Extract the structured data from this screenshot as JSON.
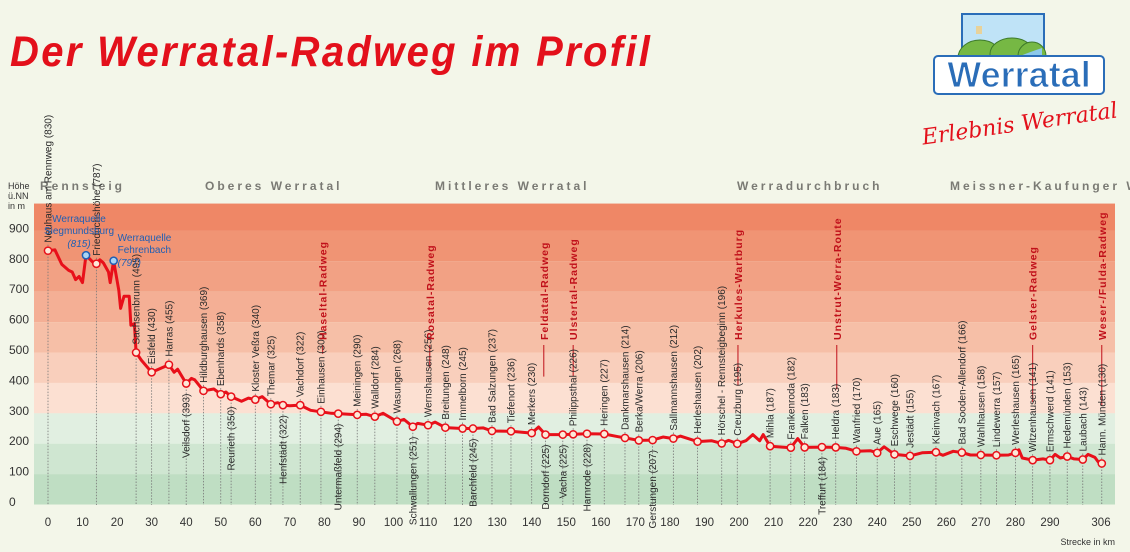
{
  "header": {
    "title": "Der Werratal-Radweg im Profil"
  },
  "logo": {
    "wordmark": "Werratal",
    "slogan": "Erlebnis Werratal"
  },
  "colors": {
    "profile": "#e8101a",
    "trail": "#c0101a",
    "source": "#1f5fb5",
    "title": "#e3101b"
  },
  "chart_data": {
    "type": "line",
    "title": "Der Werratal-Radweg im Profil",
    "xlabel": "Strecke in km",
    "ylabel": [
      "Höhe",
      "ü.NN",
      "in m"
    ],
    "xlim": [
      0,
      306
    ],
    "ylim": [
      0,
      900
    ],
    "xticks": [
      0,
      10,
      20,
      30,
      40,
      50,
      60,
      70,
      80,
      90,
      100,
      110,
      120,
      130,
      140,
      150,
      160,
      170,
      180,
      190,
      200,
      210,
      220,
      230,
      240,
      250,
      260,
      270,
      280,
      290,
      306
    ],
    "yticks": [
      0,
      100,
      200,
      300,
      400,
      500,
      600,
      700,
      800,
      900
    ],
    "regions": [
      "Rennsteig",
      "Oberes Werratal",
      "Mittleres Werratal",
      "Werradurchbruch",
      "Meissner-Kaufunger Wald"
    ],
    "sources": [
      {
        "title": "Werraquelle",
        "name": "Siegmundsburg",
        "km": 11,
        "elev": 815
      },
      {
        "title": "Werraquelle",
        "name": "Fehrenbach",
        "km": 19,
        "elev": 797
      }
    ],
    "stations": [
      {
        "name": "Neuhaus am Rennweg",
        "km": 0,
        "elev": 830,
        "pos": "above"
      },
      {
        "name": "Friedrichshöhe",
        "km": 14,
        "elev": 787,
        "pos": "above"
      },
      {
        "name": "Sachsenbrunn",
        "km": 25.5,
        "elev": 495,
        "pos": "above"
      },
      {
        "name": "Eisfeld",
        "km": 30,
        "elev": 430,
        "pos": "above"
      },
      {
        "name": "Harras",
        "km": 35,
        "elev": 455,
        "pos": "above"
      },
      {
        "name": "Veilsdorf",
        "km": 40,
        "elev": 393,
        "pos": "below"
      },
      {
        "name": "Hildburghausen",
        "km": 45,
        "elev": 369,
        "pos": "above"
      },
      {
        "name": "Ebenhards",
        "km": 50,
        "elev": 358,
        "pos": "above"
      },
      {
        "name": "Reurieth",
        "km": 53,
        "elev": 350,
        "pos": "below"
      },
      {
        "name": "Kloster Veßra",
        "km": 60,
        "elev": 340,
        "pos": "above"
      },
      {
        "name": "Themar",
        "km": 64.5,
        "elev": 325,
        "pos": "above"
      },
      {
        "name": "Henfstädt",
        "km": 68,
        "elev": 322,
        "pos": "below"
      },
      {
        "name": "Vachdorf",
        "km": 73,
        "elev": 322,
        "pos": "above"
      },
      {
        "name": "Einhausen",
        "km": 79,
        "elev": 300,
        "pos": "above"
      },
      {
        "name": "Untermaßfeld",
        "km": 84,
        "elev": 294,
        "pos": "below"
      },
      {
        "name": "Meiningen",
        "km": 89.5,
        "elev": 290,
        "pos": "above"
      },
      {
        "name": "Walldorf",
        "km": 94.6,
        "elev": 284,
        "pos": "above"
      },
      {
        "name": "Wasungen",
        "km": 101,
        "elev": 268,
        "pos": "above"
      },
      {
        "name": "Schwallungen",
        "km": 105.6,
        "elev": 251,
        "pos": "below"
      },
      {
        "name": "Wernshausen",
        "km": 110,
        "elev": 256,
        "pos": "above"
      },
      {
        "name": "Breitungen",
        "km": 115,
        "elev": 248,
        "pos": "above"
      },
      {
        "name": "Immelborn",
        "km": 120,
        "elev": 245,
        "pos": "above"
      },
      {
        "name": "Barchfeld",
        "km": 123,
        "elev": 245,
        "pos": "below"
      },
      {
        "name": "Bad Salzungen",
        "km": 128.5,
        "elev": 237,
        "pos": "above"
      },
      {
        "name": "Tiefenort",
        "km": 134,
        "elev": 236,
        "pos": "above"
      },
      {
        "name": "Merkers",
        "km": 140,
        "elev": 230,
        "pos": "above"
      },
      {
        "name": "Dorndorf",
        "km": 144,
        "elev": 225,
        "pos": "below"
      },
      {
        "name": "Vacha",
        "km": 149,
        "elev": 225,
        "pos": "below"
      },
      {
        "name": "Philippsthal",
        "km": 152,
        "elev": 226,
        "pos": "above"
      },
      {
        "name": "Harnrode",
        "km": 156,
        "elev": 228,
        "pos": "below"
      },
      {
        "name": "Heringen",
        "km": 161,
        "elev": 227,
        "pos": "above"
      },
      {
        "name": "Dankmarshausen",
        "km": 167,
        "elev": 214,
        "pos": "above"
      },
      {
        "name": "Berka/Werra",
        "km": 171,
        "elev": 206,
        "pos": "above"
      },
      {
        "name": "Gerstungen",
        "km": 175,
        "elev": 207,
        "pos": "below"
      },
      {
        "name": "Sallmannshausen",
        "km": 181,
        "elev": 212,
        "pos": "above"
      },
      {
        "name": "Herleshausen",
        "km": 188,
        "elev": 202,
        "pos": "above"
      },
      {
        "name": "Hörschel - Rennsteigbeginn",
        "km": 195,
        "elev": 196,
        "pos": "above"
      },
      {
        "name": "Creuzburg",
        "km": 199.5,
        "elev": 195,
        "pos": "above"
      },
      {
        "name": "Mihla",
        "km": 209,
        "elev": 187,
        "pos": "above"
      },
      {
        "name": "Frankenroda",
        "km": 215,
        "elev": 182,
        "pos": "above"
      },
      {
        "name": "Falken",
        "km": 219,
        "elev": 183,
        "pos": "above"
      },
      {
        "name": "Treffurt",
        "km": 224,
        "elev": 184,
        "pos": "below"
      },
      {
        "name": "Heldra",
        "km": 228,
        "elev": 183,
        "pos": "above"
      },
      {
        "name": "Wanfried",
        "km": 234,
        "elev": 170,
        "pos": "above"
      },
      {
        "name": "Aue",
        "km": 240,
        "elev": 165,
        "pos": "above"
      },
      {
        "name": "Eschwege",
        "km": 245,
        "elev": 160,
        "pos": "above"
      },
      {
        "name": "Jestädt",
        "km": 249.5,
        "elev": 155,
        "pos": "above"
      },
      {
        "name": "Kleinvach",
        "km": 257,
        "elev": 167,
        "pos": "above"
      },
      {
        "name": "Bad Sooden-Allendorf",
        "km": 264.5,
        "elev": 166,
        "pos": "above"
      },
      {
        "name": "Wahlhausen",
        "km": 270,
        "elev": 158,
        "pos": "above"
      },
      {
        "name": "Lindewerra",
        "km": 274.5,
        "elev": 157,
        "pos": "above"
      },
      {
        "name": "Werleshausen",
        "km": 280,
        "elev": 165,
        "pos": "above"
      },
      {
        "name": "Witzenhausen",
        "km": 285,
        "elev": 141,
        "pos": "above"
      },
      {
        "name": "Ermschwerd",
        "km": 290,
        "elev": 141,
        "pos": "above"
      },
      {
        "name": "Hedemünden",
        "km": 295,
        "elev": 153,
        "pos": "above"
      },
      {
        "name": "Laubach",
        "km": 299.5,
        "elev": 143,
        "pos": "above"
      },
      {
        "name": "Hann. Münden",
        "km": 305,
        "elev": 130,
        "pos": "above"
      }
    ],
    "trails": [
      {
        "name": "Haseltal-Radweg",
        "km": 79.5
      },
      {
        "name": "Rosatal-Radweg",
        "km": 110.5
      },
      {
        "name": "Feldatal-Radweg",
        "km": 143.5
      },
      {
        "name": "Ulstertal-Radweg",
        "km": 152
      },
      {
        "name": "Herkules-Wartburg",
        "km": 199.7
      },
      {
        "name": "Unstrut-Werra-Route",
        "km": 228.3
      },
      {
        "name": "Gelster-Radweg",
        "km": 285
      },
      {
        "name": "Weser-/Fulda-Radweg",
        "km": 305
      }
    ],
    "profile": [
      [
        0,
        830
      ],
      [
        2,
        833
      ],
      [
        4,
        785
      ],
      [
        6,
        765
      ],
      [
        7,
        760
      ],
      [
        8,
        735
      ],
      [
        9,
        745
      ],
      [
        10,
        725
      ],
      [
        11,
        815
      ],
      [
        13,
        792
      ],
      [
        14,
        787
      ],
      [
        15,
        800
      ],
      [
        16,
        790
      ],
      [
        17.5,
        760
      ],
      [
        18,
        725
      ],
      [
        19,
        797
      ],
      [
        20.5,
        700
      ],
      [
        21,
        640
      ],
      [
        22,
        680
      ],
      [
        23.5,
        680
      ],
      [
        24,
        585
      ],
      [
        25,
        590
      ],
      [
        25.5,
        495
      ],
      [
        27,
        470
      ],
      [
        30,
        430
      ],
      [
        35,
        455
      ],
      [
        36.5,
        430
      ],
      [
        37.5,
        440
      ],
      [
        40,
        393
      ],
      [
        41.5,
        410
      ],
      [
        42.5,
        405
      ],
      [
        45,
        369
      ],
      [
        48,
        375
      ],
      [
        50,
        358
      ],
      [
        51.5,
        365
      ],
      [
        53,
        350
      ],
      [
        56,
        335
      ],
      [
        58,
        345
      ],
      [
        60,
        340
      ],
      [
        62,
        350
      ],
      [
        64.5,
        325
      ],
      [
        66.5,
        330
      ],
      [
        68,
        322
      ],
      [
        70,
        320
      ],
      [
        73,
        322
      ],
      [
        76,
        305
      ],
      [
        79,
        300
      ],
      [
        82,
        295
      ],
      [
        84,
        294
      ],
      [
        89.5,
        290
      ],
      [
        92,
        292
      ],
      [
        94.6,
        284
      ],
      [
        97,
        295
      ],
      [
        101,
        268
      ],
      [
        103,
        275
      ],
      [
        105.6,
        251
      ],
      [
        107,
        262
      ],
      [
        110,
        256
      ],
      [
        112,
        266
      ],
      [
        115,
        248
      ],
      [
        120,
        245
      ],
      [
        123,
        245
      ],
      [
        126,
        247
      ],
      [
        128.5,
        237
      ],
      [
        134,
        236
      ],
      [
        140,
        230
      ],
      [
        142,
        250
      ],
      [
        144,
        225
      ],
      [
        149,
        225
      ],
      [
        152,
        226
      ],
      [
        156,
        228
      ],
      [
        161,
        227
      ],
      [
        165,
        218
      ],
      [
        167,
        214
      ],
      [
        171,
        206
      ],
      [
        175,
        207
      ],
      [
        178,
        217
      ],
      [
        181,
        212
      ],
      [
        183,
        220
      ],
      [
        188,
        202
      ],
      [
        192,
        205
      ],
      [
        195,
        196
      ],
      [
        197,
        206
      ],
      [
        199.5,
        195
      ],
      [
        202,
        205
      ],
      [
        204,
        225
      ],
      [
        206,
        205
      ],
      [
        207,
        225
      ],
      [
        209,
        187
      ],
      [
        215,
        182
      ],
      [
        217,
        212
      ],
      [
        219,
        183
      ],
      [
        224,
        184
      ],
      [
        228,
        183
      ],
      [
        231,
        180
      ],
      [
        234,
        170
      ],
      [
        238,
        172
      ],
      [
        240,
        165
      ],
      [
        242,
        185
      ],
      [
        245,
        160
      ],
      [
        249.5,
        155
      ],
      [
        253,
        165
      ],
      [
        257,
        167
      ],
      [
        259,
        157
      ],
      [
        262,
        170
      ],
      [
        264.5,
        166
      ],
      [
        267,
        158
      ],
      [
        270,
        158
      ],
      [
        274.5,
        157
      ],
      [
        278,
        158
      ],
      [
        280,
        165
      ],
      [
        281,
        175
      ],
      [
        282,
        148
      ],
      [
        285,
        141
      ],
      [
        288,
        145
      ],
      [
        290,
        141
      ],
      [
        291.5,
        160
      ],
      [
        293,
        148
      ],
      [
        295,
        153
      ],
      [
        297,
        145
      ],
      [
        299.5,
        143
      ],
      [
        301,
        160
      ],
      [
        303,
        150
      ],
      [
        304,
        135
      ],
      [
        305,
        130
      ]
    ]
  }
}
